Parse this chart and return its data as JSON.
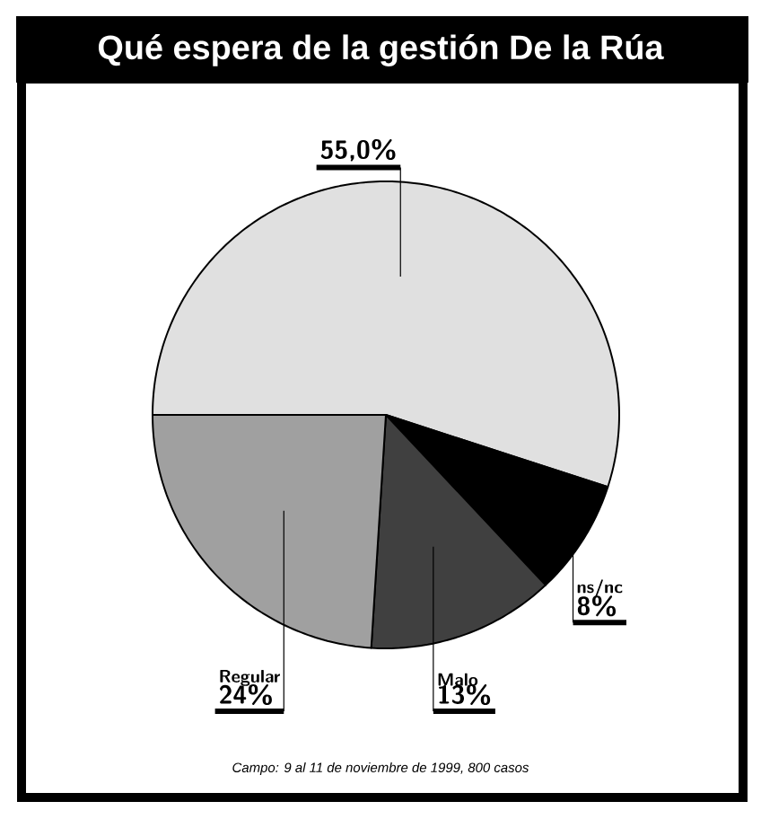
{
  "chart_data": {
    "type": "pie",
    "title": "Qué espera de la gestión De la Rúa",
    "categories": [
      null,
      "ns/nc",
      "Malo",
      "Regular"
    ],
    "values": [
      55,
      8,
      13,
      24
    ],
    "value_labels": [
      "55,0%",
      "8%",
      "13%",
      "24%"
    ],
    "colors": [
      "#e0e0e0",
      "#000000",
      "#404040",
      "#a0a0a0"
    ],
    "annotations": [
      "Campo: 9 al 11 de noviembre de 1999, 800 casos"
    ]
  }
}
